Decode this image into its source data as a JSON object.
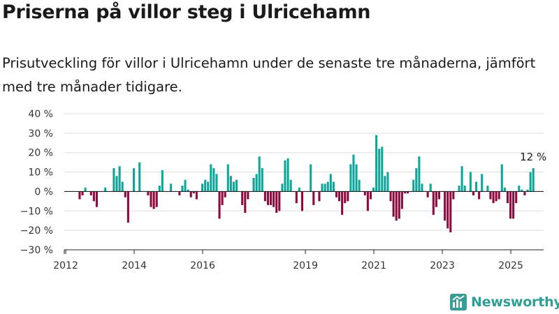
{
  "header": {
    "title": "Priserna på villor steg i Ulricehamn",
    "subtitle": "Prisutveckling för villor i Ulricehamn under de senaste tre månaderna, jämfört med tre månader tidigare."
  },
  "brand": {
    "name": "Newsworthy",
    "logo_icon": "newsworthy-logo-icon",
    "color": "#3a9c94"
  },
  "colors": {
    "positive": "#0ea59a",
    "negative": "#8e0a3f",
    "grid": "#dddddd",
    "axis": "#222222"
  },
  "chart_data": {
    "type": "bar",
    "title": "",
    "xlabel": "",
    "ylabel": "",
    "ylim": [
      -30,
      40
    ],
    "grid": true,
    "y_ticks": [
      "40 %",
      "30 %",
      "20 %",
      "10 %",
      "0 %",
      "−10 %",
      "−20 %",
      "−30 %"
    ],
    "y_tick_values": [
      40,
      30,
      20,
      10,
      0,
      -10,
      -20,
      -30
    ],
    "x_ticks": [
      "2012",
      "2014",
      "2016",
      "2019",
      "2021",
      "2023",
      "2025"
    ],
    "x_tick_dates": [
      "2012-01",
      "2014-01",
      "2016-01",
      "2019-01",
      "2021-01",
      "2023-01",
      "2025-01"
    ],
    "x_range": [
      "2012-01",
      "2025-12"
    ],
    "last_value_label": "12 %",
    "series": [
      {
        "values": [
          [
            "2012-06",
            -4
          ],
          [
            "2012-07",
            -2
          ],
          [
            "2012-08",
            2
          ],
          [
            "2012-09",
            0
          ],
          [
            "2012-10",
            -2
          ],
          [
            "2012-11",
            -5
          ],
          [
            "2012-12",
            -8
          ],
          [
            "2013-01",
            0
          ],
          [
            "2013-02",
            0
          ],
          [
            "2013-03",
            2
          ],
          [
            "2013-04",
            0
          ],
          [
            "2013-05",
            0
          ],
          [
            "2013-06",
            12
          ],
          [
            "2013-07",
            8
          ],
          [
            "2013-08",
            13
          ],
          [
            "2013-09",
            5
          ],
          [
            "2013-10",
            -3
          ],
          [
            "2013-11",
            -16
          ],
          [
            "2013-12",
            0
          ],
          [
            "2014-01",
            12
          ],
          [
            "2014-02",
            0
          ],
          [
            "2014-03",
            15
          ],
          [
            "2014-04",
            0
          ],
          [
            "2014-05",
            0
          ],
          [
            "2014-06",
            -2
          ],
          [
            "2014-07",
            -8
          ],
          [
            "2014-08",
            -9
          ],
          [
            "2014-09",
            -8
          ],
          [
            "2014-10",
            3
          ],
          [
            "2014-11",
            11
          ],
          [
            "2014-12",
            0
          ],
          [
            "2015-01",
            0
          ],
          [
            "2015-02",
            4
          ],
          [
            "2015-03",
            0
          ],
          [
            "2015-04",
            0
          ],
          [
            "2015-05",
            -2
          ],
          [
            "2015-06",
            3
          ],
          [
            "2015-07",
            6
          ],
          [
            "2015-08",
            1
          ],
          [
            "2015-09",
            -3
          ],
          [
            "2015-10",
            -1
          ],
          [
            "2015-11",
            -4
          ],
          [
            "2015-12",
            0
          ],
          [
            "2016-01",
            4
          ],
          [
            "2016-02",
            6
          ],
          [
            "2016-03",
            5
          ],
          [
            "2016-04",
            14
          ],
          [
            "2016-05",
            12
          ],
          [
            "2016-06",
            9
          ],
          [
            "2016-07",
            -14
          ],
          [
            "2016-08",
            -7
          ],
          [
            "2016-09",
            -3
          ],
          [
            "2016-10",
            14
          ],
          [
            "2016-11",
            8
          ],
          [
            "2016-12",
            5
          ],
          [
            "2017-01",
            6
          ],
          [
            "2017-02",
            0
          ],
          [
            "2017-03",
            -7
          ],
          [
            "2017-04",
            -11
          ],
          [
            "2017-05",
            -4
          ],
          [
            "2017-06",
            0
          ],
          [
            "2017-07",
            7
          ],
          [
            "2017-08",
            9
          ],
          [
            "2017-09",
            18
          ],
          [
            "2017-10",
            12
          ],
          [
            "2017-11",
            -5
          ],
          [
            "2017-12",
            -7
          ],
          [
            "2018-01",
            -7
          ],
          [
            "2018-02",
            -8
          ],
          [
            "2018-03",
            -11
          ],
          [
            "2018-04",
            -10
          ],
          [
            "2018-05",
            4
          ],
          [
            "2018-06",
            16
          ],
          [
            "2018-07",
            17
          ],
          [
            "2018-08",
            6
          ],
          [
            "2018-09",
            0
          ],
          [
            "2018-10",
            -6
          ],
          [
            "2018-11",
            2
          ],
          [
            "2018-12",
            -10
          ],
          [
            "2019-01",
            0
          ],
          [
            "2019-02",
            0
          ],
          [
            "2019-03",
            14
          ],
          [
            "2019-04",
            -7
          ],
          [
            "2019-05",
            0
          ],
          [
            "2019-06",
            -5
          ],
          [
            "2019-07",
            4
          ],
          [
            "2019-08",
            4
          ],
          [
            "2019-09",
            5
          ],
          [
            "2019-10",
            9
          ],
          [
            "2019-11",
            5
          ],
          [
            "2019-12",
            -3
          ],
          [
            "2020-01",
            -5
          ],
          [
            "2020-02",
            -12
          ],
          [
            "2020-03",
            -6
          ],
          [
            "2020-04",
            -5
          ],
          [
            "2020-05",
            14
          ],
          [
            "2020-06",
            19
          ],
          [
            "2020-07",
            14
          ],
          [
            "2020-08",
            6
          ],
          [
            "2020-09",
            0
          ],
          [
            "2020-10",
            -2
          ],
          [
            "2020-11",
            -10
          ],
          [
            "2020-12",
            -4
          ],
          [
            "2021-01",
            2
          ],
          [
            "2021-02",
            29
          ],
          [
            "2021-03",
            22
          ],
          [
            "2021-04",
            23
          ],
          [
            "2021-05",
            8
          ],
          [
            "2021-06",
            10
          ],
          [
            "2021-07",
            -5
          ],
          [
            "2021-08",
            -13
          ],
          [
            "2021-09",
            -15
          ],
          [
            "2021-10",
            -14
          ],
          [
            "2021-11",
            -9
          ],
          [
            "2021-12",
            -1
          ],
          [
            "2022-01",
            -1
          ],
          [
            "2022-02",
            0
          ],
          [
            "2022-03",
            6
          ],
          [
            "2022-04",
            12
          ],
          [
            "2022-05",
            18
          ],
          [
            "2022-06",
            4
          ],
          [
            "2022-07",
            0
          ],
          [
            "2022-08",
            -3
          ],
          [
            "2022-09",
            4
          ],
          [
            "2022-10",
            -12
          ],
          [
            "2022-11",
            -8
          ],
          [
            "2022-12",
            -4
          ],
          [
            "2023-01",
            0
          ],
          [
            "2023-02",
            -15
          ],
          [
            "2023-03",
            -19
          ],
          [
            "2023-04",
            -21
          ],
          [
            "2023-05",
            -4
          ],
          [
            "2023-06",
            0
          ],
          [
            "2023-07",
            3
          ],
          [
            "2023-08",
            13
          ],
          [
            "2023-09",
            3
          ],
          [
            "2023-10",
            0
          ],
          [
            "2023-11",
            10
          ],
          [
            "2023-12",
            -2
          ],
          [
            "2024-01",
            5
          ],
          [
            "2024-02",
            -4
          ],
          [
            "2024-03",
            9
          ],
          [
            "2024-04",
            0
          ],
          [
            "2024-05",
            3
          ],
          [
            "2024-06",
            -4
          ],
          [
            "2024-07",
            -6
          ],
          [
            "2024-08",
            -5
          ],
          [
            "2024-09",
            -4
          ],
          [
            "2024-10",
            14
          ],
          [
            "2024-11",
            2
          ],
          [
            "2024-12",
            -6
          ],
          [
            "2025-01",
            -14
          ],
          [
            "2025-02",
            -14
          ],
          [
            "2025-03",
            -6
          ],
          [
            "2025-04",
            3
          ],
          [
            "2025-05",
            1
          ],
          [
            "2025-06",
            -2
          ],
          [
            "2025-07",
            1
          ],
          [
            "2025-08",
            10
          ],
          [
            "2025-09",
            12
          ]
        ]
      }
    ]
  }
}
